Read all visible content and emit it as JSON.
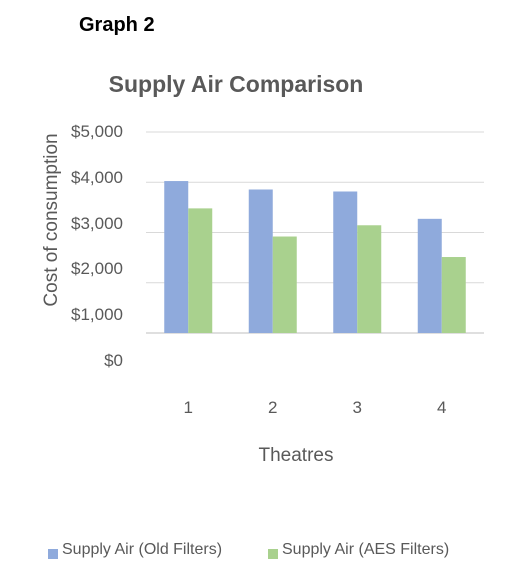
{
  "graph_label": "Graph 2",
  "chart_data": {
    "type": "bar",
    "title": "Supply Air Comparison",
    "xlabel": "Theatres",
    "ylabel": "Cost of consumption",
    "categories": [
      "1",
      "2",
      "3",
      "4"
    ],
    "series": [
      {
        "name": "Supply Air (Old Filters)",
        "color": "#8faadc",
        "values": [
          3780,
          3570,
          3520,
          2840
        ]
      },
      {
        "name": "Supply Air (AES Filters)",
        "color": "#a9d18e",
        "values": [
          3100,
          2400,
          2680,
          1890
        ]
      }
    ],
    "yticks": [
      "$0",
      "$1,000",
      "$2,000",
      "$3,000",
      "$4,000",
      "$5,000"
    ],
    "ylim": [
      0,
      5000
    ],
    "grid": true,
    "legend_position": "bottom"
  }
}
